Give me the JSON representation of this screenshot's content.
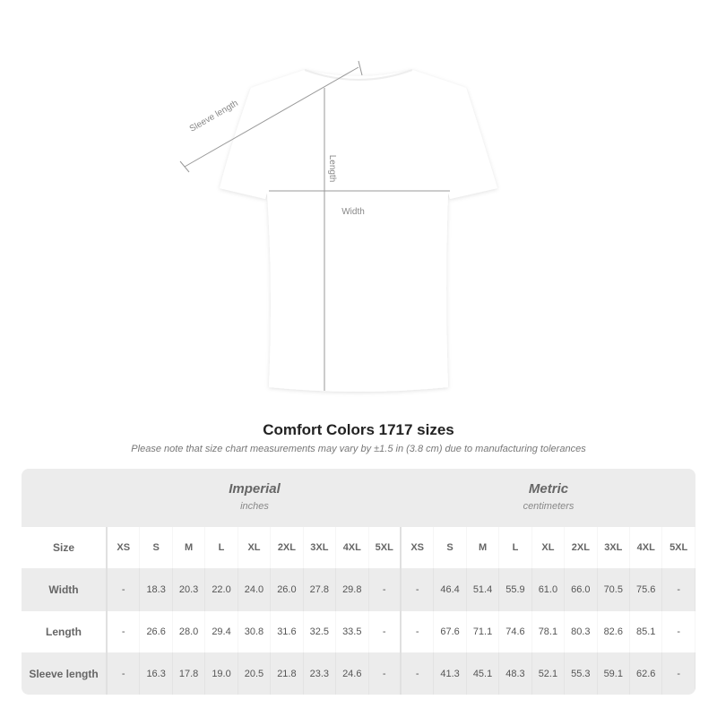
{
  "diagram": {
    "sleeve_label": "Sleeve length",
    "length_label": "Length",
    "width_label": "Width"
  },
  "title": "Comfort Colors 1717 sizes",
  "subtitle": "Please note that size chart measurements may vary by ±1.5 in (3.8 cm) due to manufacturing tolerances",
  "table": {
    "imperial": {
      "name": "Imperial",
      "unit": "inches"
    },
    "metric": {
      "name": "Metric",
      "unit": "centimeters"
    },
    "size_label": "Size",
    "sizes": [
      "XS",
      "S",
      "M",
      "L",
      "XL",
      "2XL",
      "3XL",
      "4XL",
      "5XL"
    ],
    "rows": [
      {
        "label": "Width",
        "imperial": [
          "-",
          "18.3",
          "20.3",
          "22.0",
          "24.0",
          "26.0",
          "27.8",
          "29.8",
          "-"
        ],
        "metric": [
          "-",
          "46.4",
          "51.4",
          "55.9",
          "61.0",
          "66.0",
          "70.5",
          "75.6",
          "-"
        ]
      },
      {
        "label": "Length",
        "imperial": [
          "-",
          "26.6",
          "28.0",
          "29.4",
          "30.8",
          "31.6",
          "32.5",
          "33.5",
          "-"
        ],
        "metric": [
          "-",
          "67.6",
          "71.1",
          "74.6",
          "78.1",
          "80.3",
          "82.6",
          "85.1",
          "-"
        ]
      },
      {
        "label": "Sleeve length",
        "imperial": [
          "-",
          "16.3",
          "17.8",
          "19.0",
          "20.5",
          "21.8",
          "23.3",
          "24.6",
          "-"
        ],
        "metric": [
          "-",
          "41.3",
          "45.1",
          "48.3",
          "52.1",
          "55.3",
          "59.1",
          "62.6",
          "-"
        ]
      }
    ]
  }
}
